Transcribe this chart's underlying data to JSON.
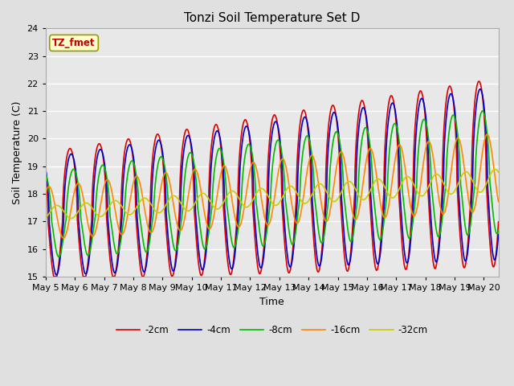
{
  "title": "Tonzi Soil Temperature Set D",
  "xlabel": "Time",
  "ylabel": "Soil Temperature (C)",
  "ylim": [
    15.0,
    24.0
  ],
  "yticks": [
    15.0,
    16.0,
    17.0,
    18.0,
    19.0,
    20.0,
    21.0,
    22.0,
    23.0,
    24.0
  ],
  "legend_label": "TZ_fmet",
  "series_labels": [
    "-2cm",
    "-4cm",
    "-8cm",
    "-16cm",
    "-32cm"
  ],
  "series_colors": [
    "#dd0000",
    "#0000cc",
    "#00bb00",
    "#ff8800",
    "#cccc00"
  ],
  "line_widths": [
    1.2,
    1.2,
    1.2,
    1.2,
    1.2
  ],
  "n_days": 15.5,
  "points_per_day": 96,
  "background_color": "#e0e0e0",
  "plot_bg_color": "#e8e8e8",
  "grid_color": "#ffffff",
  "xtick_labels": [
    "May 5",
    "May 6",
    "May 7",
    "May 8",
    "May 9",
    "May 10",
    "May 11",
    "May 12",
    "May 13",
    "May 14",
    "May 15",
    "May 16",
    "May 17",
    "May 18",
    "May 19",
    "May 20"
  ]
}
